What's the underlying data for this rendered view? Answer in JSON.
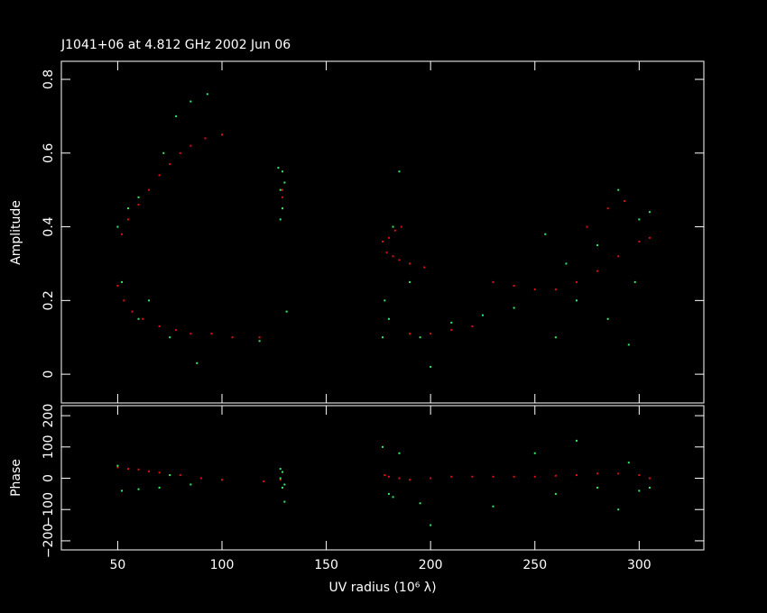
{
  "chart_data": [
    {
      "type": "scatter",
      "title": "J1041+06 at 4.812 GHz 2002 Jun 06",
      "y_label": "Amplitude",
      "xlim": [
        23,
        331
      ],
      "ylim": [
        -0.078,
        0.849
      ],
      "yticks": [
        0,
        0.2,
        0.4,
        0.6,
        0.8
      ],
      "series": [
        {
          "color": "#e01010",
          "x": [
            52,
            55,
            60,
            65,
            70,
            75,
            80,
            85,
            92,
            100,
            50,
            53,
            57,
            62,
            70,
            78,
            85,
            95,
            105,
            118,
            129,
            129,
            129,
            177,
            179,
            182,
            185,
            190,
            197,
            180,
            183,
            186,
            190,
            200,
            210,
            220,
            230,
            240,
            250,
            260,
            270,
            280,
            290,
            300,
            305,
            285,
            293,
            275
          ],
          "values": [
            0.38,
            0.42,
            0.46,
            0.5,
            0.54,
            0.57,
            0.6,
            0.62,
            0.64,
            0.65,
            0.24,
            0.2,
            0.17,
            0.15,
            0.13,
            0.12,
            0.11,
            0.11,
            0.1,
            0.1,
            0.45,
            0.5,
            0.48,
            0.36,
            0.33,
            0.32,
            0.31,
            0.3,
            0.29,
            0.37,
            0.39,
            0.4,
            0.11,
            0.11,
            0.12,
            0.13,
            0.25,
            0.24,
            0.23,
            0.23,
            0.25,
            0.28,
            0.32,
            0.36,
            0.37,
            0.45,
            0.47,
            0.4
          ]
        },
        {
          "color": "#33ee66",
          "x": [
            50,
            52,
            55,
            60,
            65,
            72,
            78,
            85,
            93,
            88,
            75,
            60,
            118,
            128,
            129,
            129,
            130,
            128,
            127,
            131,
            177,
            178,
            180,
            182,
            185,
            190,
            195,
            200,
            210,
            225,
            240,
            255,
            260,
            265,
            270,
            280,
            285,
            290,
            295,
            300,
            305,
            298
          ],
          "values": [
            0.4,
            0.25,
            0.45,
            0.48,
            0.2,
            0.6,
            0.7,
            0.74,
            0.76,
            0.03,
            0.1,
            0.15,
            0.09,
            0.5,
            0.55,
            0.45,
            0.52,
            0.42,
            0.56,
            0.17,
            0.1,
            0.2,
            0.15,
            0.4,
            0.55,
            0.25,
            0.1,
            0.02,
            0.14,
            0.16,
            0.18,
            0.38,
            0.1,
            0.3,
            0.2,
            0.35,
            0.15,
            0.5,
            0.08,
            0.42,
            0.44,
            0.25
          ]
        }
      ]
    },
    {
      "type": "scatter",
      "x_label": "UV radius  (10⁶ λ)",
      "y_label": "Phase",
      "xlim": [
        23,
        331
      ],
      "xticks": [
        50,
        100,
        150,
        200,
        250,
        300
      ],
      "ylim": [
        -229,
        232
      ],
      "yticks": [
        {
          "value": -200,
          "label": "−200"
        },
        {
          "value": -100,
          "label": "−100"
        },
        0,
        100,
        200
      ],
      "series": [
        {
          "color": "#e01010",
          "x": [
            50,
            55,
            60,
            65,
            70,
            80,
            90,
            100,
            120,
            128,
            178,
            180,
            185,
            190,
            200,
            210,
            220,
            230,
            240,
            250,
            260,
            270,
            280,
            290,
            300,
            305
          ],
          "values": [
            35,
            30,
            28,
            22,
            18,
            10,
            0,
            -5,
            -10,
            -5,
            10,
            5,
            0,
            -5,
            0,
            5,
            5,
            5,
            5,
            5,
            8,
            10,
            15,
            15,
            10,
            0
          ]
        },
        {
          "color": "#33ee66",
          "x": [
            50,
            52,
            60,
            70,
            75,
            85,
            128,
            129,
            130,
            128,
            129,
            130,
            177,
            180,
            185,
            182,
            195,
            200,
            230,
            250,
            260,
            270,
            280,
            290,
            295,
            300,
            305
          ],
          "values": [
            40,
            -40,
            -35,
            -30,
            10,
            -20,
            0,
            20,
            -20,
            30,
            -30,
            -75,
            100,
            -50,
            80,
            -60,
            -80,
            -150,
            -90,
            80,
            -50,
            120,
            -30,
            -100,
            50,
            -40,
            -30
          ]
        }
      ]
    }
  ]
}
